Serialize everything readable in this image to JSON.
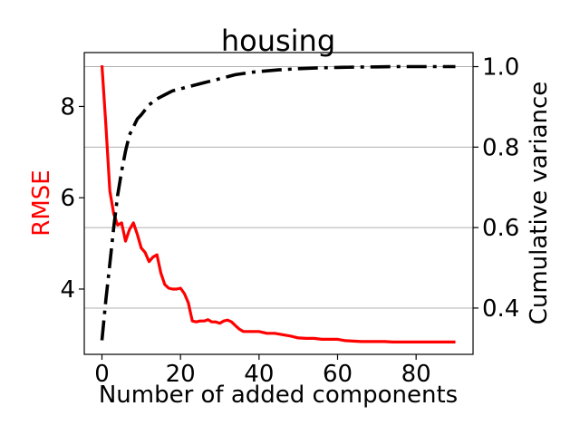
{
  "chart_data": {
    "type": "line",
    "title": "housing",
    "xlabel": "Number of added components",
    "ylabel_left": "RMSE",
    "ylabel_right": "Cumulative variance",
    "xlim": [
      -4.5,
      94.5
    ],
    "ylim_left": [
      2.57,
      9.18
    ],
    "ylim_right": [
      0.285,
      1.035
    ],
    "x_ticks": [
      0,
      20,
      40,
      60,
      80
    ],
    "y_ticks_left": [
      4,
      6,
      8
    ],
    "y_ticks_right": [
      0.4,
      0.6,
      0.8,
      1.0
    ],
    "x_tick_labels": [
      "0",
      "20",
      "40",
      "60",
      "80"
    ],
    "y_tick_labels_left": [
      "4",
      "6",
      "8"
    ],
    "y_tick_labels_right": [
      "0.4",
      "0.6",
      "0.8",
      "1.0"
    ],
    "grid": "horizontal lines at right-axis ticks",
    "legend": "none",
    "colors": {
      "rmse": "#ff0000",
      "cumulative_variance": "#000000",
      "grid": "#b0b0b0"
    },
    "series": [
      {
        "axis": "left",
        "style": "solid",
        "x": [
          0,
          1,
          2,
          3,
          4,
          5,
          6,
          7,
          8,
          9,
          10,
          11,
          12,
          13,
          14,
          15,
          16,
          17,
          18,
          19,
          20,
          21,
          22,
          23,
          24,
          25,
          26,
          27,
          28,
          29,
          30,
          31,
          32,
          33,
          34,
          35,
          36,
          37,
          38,
          39,
          40,
          42,
          44,
          46,
          48,
          50,
          52,
          54,
          56,
          58,
          60,
          62,
          64,
          66,
          68,
          70,
          72,
          74,
          76,
          78,
          80,
          82,
          84,
          86,
          88,
          90
        ],
        "values": [
          8.9,
          7.6,
          6.15,
          5.65,
          5.4,
          5.45,
          5.05,
          5.3,
          5.45,
          5.2,
          4.9,
          4.8,
          4.6,
          4.7,
          4.75,
          4.35,
          4.1,
          4.02,
          4.0,
          4.0,
          4.02,
          3.9,
          3.7,
          3.3,
          3.28,
          3.3,
          3.3,
          3.33,
          3.28,
          3.28,
          3.25,
          3.3,
          3.32,
          3.28,
          3.2,
          3.12,
          3.07,
          3.07,
          3.07,
          3.07,
          3.07,
          3.03,
          3.03,
          3.0,
          2.97,
          2.93,
          2.92,
          2.92,
          2.9,
          2.9,
          2.9,
          2.87,
          2.86,
          2.85,
          2.85,
          2.85,
          2.85,
          2.84,
          2.84,
          2.84,
          2.84,
          2.84,
          2.84,
          2.84,
          2.84,
          2.84
        ]
      },
      {
        "axis": "right",
        "style": "dashdot",
        "x": [
          0,
          1,
          2,
          3,
          4,
          5,
          6,
          7,
          8,
          9,
          10,
          12,
          14,
          16,
          18,
          20,
          22,
          24,
          26,
          28,
          30,
          32,
          34,
          36,
          38,
          40,
          45,
          50,
          55,
          60,
          65,
          70,
          75,
          80,
          85,
          90
        ],
        "values": [
          0.32,
          0.42,
          0.51,
          0.6,
          0.68,
          0.74,
          0.79,
          0.83,
          0.85,
          0.87,
          0.88,
          0.905,
          0.92,
          0.93,
          0.94,
          0.945,
          0.95,
          0.955,
          0.96,
          0.965,
          0.97,
          0.975,
          0.98,
          0.983,
          0.986,
          0.988,
          0.992,
          0.995,
          0.997,
          0.998,
          0.999,
          0.9995,
          1.0,
          1.0,
          1.0,
          1.0
        ]
      }
    ]
  }
}
